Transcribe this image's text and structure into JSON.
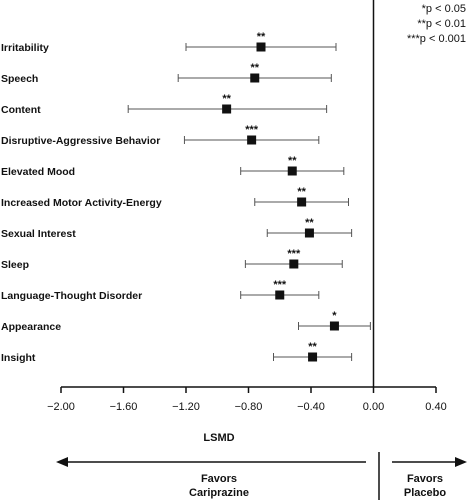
{
  "chart_data": {
    "type": "forest",
    "xlabel": "LSMD",
    "xlim": [
      -2.0,
      0.4
    ],
    "xticks": [
      "−2.00",
      "−1.60",
      "−1.20",
      "−0.80",
      "−0.40",
      "0.00",
      "0.40"
    ],
    "xtick_values": [
      -2.0,
      -1.6,
      -1.2,
      -0.8,
      -0.4,
      0.0,
      0.4
    ],
    "rows": [
      {
        "label": "Irritability",
        "est": -0.72,
        "lo": -1.2,
        "hi": -0.24,
        "sig": "**"
      },
      {
        "label": "Speech",
        "est": -0.76,
        "lo": -1.25,
        "hi": -0.27,
        "sig": "**"
      },
      {
        "label": "Content",
        "est": -0.94,
        "lo": -1.57,
        "hi": -0.3,
        "sig": "**"
      },
      {
        "label": "Disruptive-Aggressive Behavior",
        "est": -0.78,
        "lo": -1.21,
        "hi": -0.35,
        "sig": "***"
      },
      {
        "label": "Elevated Mood",
        "est": -0.52,
        "lo": -0.85,
        "hi": -0.19,
        "sig": "**"
      },
      {
        "label": "Increased Motor Activity-Energy",
        "est": -0.46,
        "lo": -0.76,
        "hi": -0.16,
        "sig": "**"
      },
      {
        "label": "Sexual Interest",
        "est": -0.41,
        "lo": -0.68,
        "hi": -0.14,
        "sig": "**"
      },
      {
        "label": "Sleep",
        "est": -0.51,
        "lo": -0.82,
        "hi": -0.2,
        "sig": "***"
      },
      {
        "label": "Language-Thought Disorder",
        "est": -0.6,
        "lo": -0.85,
        "hi": -0.35,
        "sig": "***"
      },
      {
        "label": "Appearance",
        "est": -0.25,
        "lo": -0.48,
        "hi": -0.02,
        "sig": "*"
      },
      {
        "label": "Insight",
        "est": -0.39,
        "lo": -0.64,
        "hi": -0.14,
        "sig": "**"
      }
    ],
    "legend": [
      "*p < 0.05",
      "**p < 0.01",
      "***p < 0.001"
    ],
    "favors_left": [
      "Favors",
      "Cariprazine"
    ],
    "favors_right": [
      "Favors",
      "Placebo"
    ]
  }
}
